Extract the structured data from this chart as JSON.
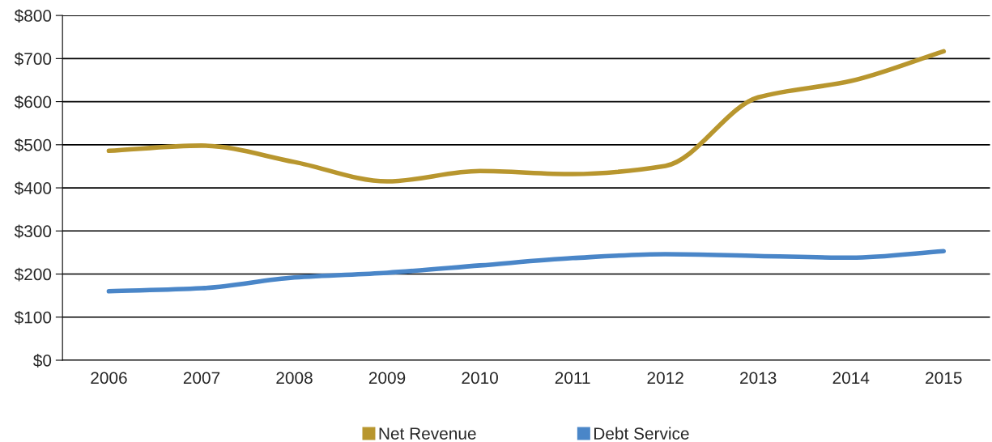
{
  "chart_data": {
    "type": "line",
    "categories": [
      "2006",
      "2007",
      "2008",
      "2009",
      "2010",
      "2011",
      "2012",
      "2013",
      "2014",
      "2015"
    ],
    "series": [
      {
        "name": "Net Revenue",
        "color": "#b8962e",
        "values": [
          486,
          498,
          460,
          415,
          439,
          432,
          451,
          610,
          648,
          717
        ]
      },
      {
        "name": "Debt Service",
        "color": "#4a86c8",
        "values": [
          160,
          167,
          192,
          203,
          220,
          237,
          246,
          242,
          238,
          253
        ]
      }
    ],
    "ylim": [
      0,
      800
    ],
    "yticks": [
      {
        "value": 0,
        "label": "$0"
      },
      {
        "value": 100,
        "label": "$100"
      },
      {
        "value": 200,
        "label": "$200"
      },
      {
        "value": 300,
        "label": "$300"
      },
      {
        "value": 400,
        "label": "$400"
      },
      {
        "value": 500,
        "label": "$500"
      },
      {
        "value": 600,
        "label": "$600"
      },
      {
        "value": 700,
        "label": "$700"
      },
      {
        "value": 800,
        "label": "$800"
      }
    ],
    "grid": "y",
    "legend": "bottom",
    "marker": "none",
    "line_style": "solid"
  }
}
